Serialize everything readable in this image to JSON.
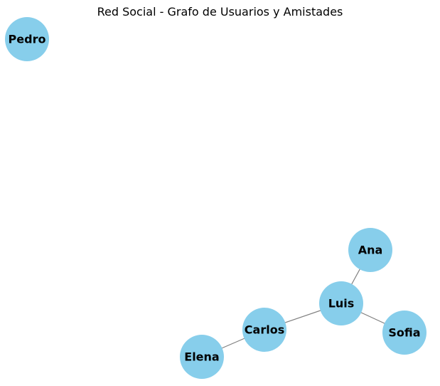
{
  "title": "Red Social - Grafo de Usuarios y Amistades",
  "colors": {
    "node_fill": "#87CEEB",
    "edge": "#808080",
    "label": "#000000"
  },
  "nodes": [
    {
      "id": "Pedro",
      "label": "Pedro"
    },
    {
      "id": "Ana",
      "label": "Ana"
    },
    {
      "id": "Luis",
      "label": "Luis"
    },
    {
      "id": "Carlos",
      "label": "Carlos"
    },
    {
      "id": "Sofia",
      "label": "Sofia"
    },
    {
      "id": "Elena",
      "label": "Elena"
    }
  ],
  "edges": [
    {
      "source": "Ana",
      "target": "Luis"
    },
    {
      "source": "Luis",
      "target": "Carlos"
    },
    {
      "source": "Luis",
      "target": "Sofia"
    },
    {
      "source": "Carlos",
      "target": "Elena"
    }
  ]
}
